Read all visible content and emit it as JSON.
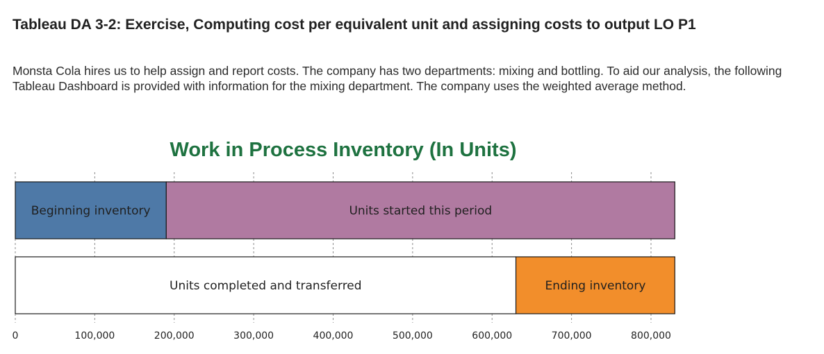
{
  "heading": "Tableau DA 3-2: Exercise, Computing cost per equivalent unit and assigning costs to output LO P1",
  "intro": "Monsta Cola hires us to help assign and report costs. The company has two departments: mixing and bottling. To aid our analysis, the following Tableau Dashboard is provided with information for the mixing department. The company uses the weighted average method.",
  "chart_data": {
    "type": "bar",
    "orientation": "horizontal",
    "stacked": true,
    "title": "Work in Process Inventory (In Units)",
    "xlim": [
      0,
      830000
    ],
    "x_ticks": [
      0,
      100000,
      200000,
      300000,
      400000,
      500000,
      600000,
      700000,
      800000
    ],
    "x_tick_labels": [
      "0",
      "100,000",
      "200,000",
      "300,000",
      "400,000",
      "500,000",
      "600,000",
      "700,000",
      "800,000"
    ],
    "grid": "vertical dashed",
    "legend": "none",
    "rows": [
      {
        "segments": [
          {
            "label": "Beginning inventory",
            "start": 0,
            "value": 190000,
            "color": "#4e79a7"
          },
          {
            "label": "Units started this period",
            "start": 190000,
            "value": 640000,
            "color": "#b07aa1"
          }
        ]
      },
      {
        "segments": [
          {
            "label": "Units completed and transferred",
            "start": 0,
            "value": 630000,
            "color": "#ffffff"
          },
          {
            "label": "Ending inventory",
            "start": 630000,
            "value": 200000,
            "color": "#f28e2b"
          }
        ]
      }
    ]
  }
}
